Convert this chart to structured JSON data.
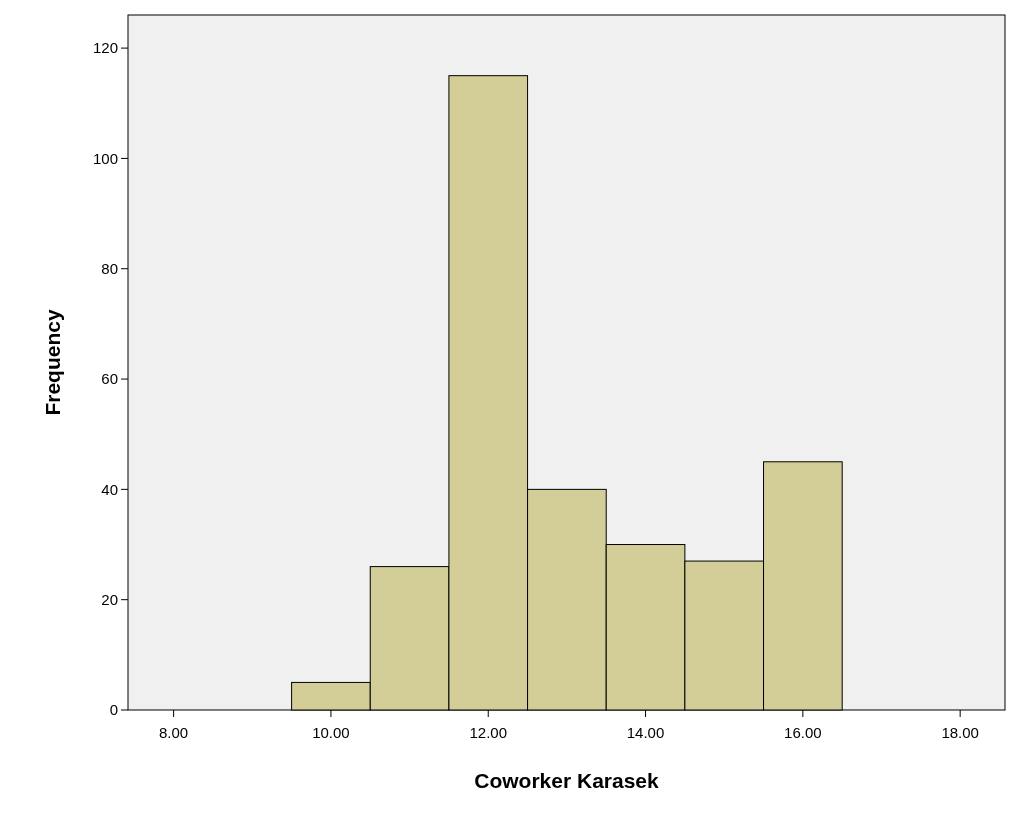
{
  "chart_data": {
    "type": "histogram",
    "xlabel": "Coworker Karasek",
    "ylabel": "Frequency",
    "bins": [
      9.5,
      10.5,
      11.5,
      12.5,
      13.5,
      14.5,
      15.5,
      16.5
    ],
    "values": [
      5,
      26,
      115,
      40,
      30,
      27,
      45
    ],
    "color": "#d3ce97",
    "xlim": [
      7.42,
      18.57
    ],
    "xticks": [
      {
        "value": 8,
        "label": "8.00"
      },
      {
        "value": 10,
        "label": "10.00"
      },
      {
        "value": 12,
        "label": "12.00"
      },
      {
        "value": 14,
        "label": "14.00"
      },
      {
        "value": 16,
        "label": "16.00"
      },
      {
        "value": 18,
        "label": "18.00"
      }
    ],
    "ylim": [
      0,
      126
    ],
    "yticks": [
      0,
      20,
      40,
      60,
      80,
      100,
      120
    ]
  }
}
